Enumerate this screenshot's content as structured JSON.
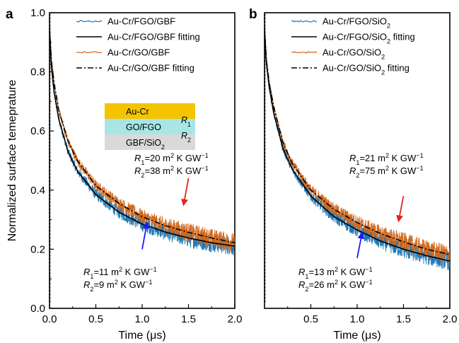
{
  "chart_data": [
    {
      "panel": "a",
      "type": "line",
      "xlabel": "Time (μs)",
      "ylabel": "Normalized surface temeprature",
      "xlim": [
        0,
        2.0
      ],
      "ylim": [
        0,
        1.0
      ],
      "xticks": [
        "0.0",
        "0.5",
        "1.0",
        "1.5",
        "2.0"
      ],
      "yticks": [
        "0.0",
        "0.2",
        "0.4",
        "0.6",
        "0.8",
        "1.0"
      ],
      "legend_position": "top-center",
      "legend": [
        {
          "text": "Au-Cr/FGO/GBF",
          "style": "noisy",
          "color": "#1f77b4"
        },
        {
          "text": "Au-Cr/FGO/GBF fitting",
          "style": "solid",
          "color": "#000000"
        },
        {
          "text": "Au-Cr/GO/GBF",
          "style": "noisy",
          "color": "#d2691e"
        },
        {
          "text": "Au-Cr/GO/GBF fitting",
          "style": "dashdot",
          "color": "#000000"
        }
      ],
      "series": [
        {
          "name": "Au-Cr/FGO/GBF",
          "color": "#1f77b4",
          "kind": "data",
          "fit_ref": "fgo"
        },
        {
          "name": "Au-Cr/FGO/GBF fitting",
          "color": "#000000",
          "kind": "fit",
          "fit_ref": "fgo",
          "x": [
            0,
            0.02,
            0.05,
            0.1,
            0.2,
            0.3,
            0.5,
            0.75,
            1.0,
            1.25,
            1.5,
            1.75,
            2.0
          ],
          "y": [
            0.95,
            0.82,
            0.73,
            0.64,
            0.53,
            0.465,
            0.385,
            0.325,
            0.285,
            0.258,
            0.238,
            0.222,
            0.21
          ]
        },
        {
          "name": "Au-Cr/GO/GBF",
          "color": "#d2691e",
          "kind": "data",
          "fit_ref": "go"
        },
        {
          "name": "Au-Cr/GO/GBF fitting",
          "color": "#000000",
          "kind": "fit",
          "fit_ref": "go",
          "x": [
            0,
            0.02,
            0.05,
            0.1,
            0.2,
            0.3,
            0.5,
            0.75,
            1.0,
            1.25,
            1.5,
            1.75,
            2.0
          ],
          "y": [
            0.95,
            0.84,
            0.76,
            0.67,
            0.565,
            0.5,
            0.415,
            0.355,
            0.31,
            0.28,
            0.257,
            0.238,
            0.222
          ]
        }
      ],
      "inset": {
        "layers": [
          {
            "text": "Au-Cr",
            "color": "#f5c400"
          },
          {
            "text": "GO/FGO",
            "color": "#a8e6e6"
          },
          {
            "text": "GBF/SiO",
            "sub": "2",
            "color": "#d9d9d9"
          }
        ],
        "r_labels": [
          {
            "text": "R",
            "sub": "1"
          },
          {
            "text": "R",
            "sub": "2"
          }
        ]
      },
      "annotations": {
        "upper": [
          {
            "sym": "R",
            "sub": "1",
            "val": "=20 m",
            "sup": "2",
            "unit": " K GW",
            "usup": "−1"
          },
          {
            "sym": "R",
            "sub": "2",
            "val": "=38 m",
            "sup": "2",
            "unit": " K GW",
            "usup": "−1"
          }
        ],
        "lower": [
          {
            "sym": "R",
            "sub": "1",
            "val": "=11 m",
            "sup": "2",
            "unit": " K GW",
            "usup": "−1"
          },
          {
            "sym": "R",
            "sub": "2",
            "val": "=9 m",
            "sup": "2",
            "unit": " K GW",
            "usup": "−1"
          }
        ],
        "arrows": [
          {
            "color": "#e8231e",
            "x0": 1.5,
            "y0": 0.44,
            "x1": 1.45,
            "y1": 0.355
          },
          {
            "color": "#1a1aff",
            "x0": 1.0,
            "y0": 0.2,
            "x1": 1.05,
            "y1": 0.285
          }
        ]
      }
    },
    {
      "panel": "b",
      "type": "line",
      "xlabel": "Time (μs)",
      "ylabel": "",
      "xlim": [
        0,
        2.0
      ],
      "ylim": [
        0,
        1.0
      ],
      "xticks": [
        "0.5",
        "1.0",
        "1.5",
        "2.0"
      ],
      "yticks": [],
      "legend_position": "top-center",
      "legend": [
        {
          "text": "Au-Cr/FGO/SiO",
          "sub": "2",
          "after": "",
          "style": "noisy",
          "color": "#1f77b4"
        },
        {
          "text": "Au-Cr/FGO/SiO",
          "sub": "2",
          "after": " fitting",
          "style": "solid",
          "color": "#000000"
        },
        {
          "text": "Au-Cr/GO/SiO",
          "sub": "2",
          "after": "",
          "style": "noisy",
          "color": "#d2691e"
        },
        {
          "text": "Au-Cr/GO/SiO",
          "sub": "2",
          "after": " fitting",
          "style": "dashdot",
          "color": "#000000"
        }
      ],
      "series": [
        {
          "name": "Au-Cr/FGO/SiO2",
          "color": "#1f77b4",
          "kind": "data",
          "fit_ref": "fgo"
        },
        {
          "name": "Au-Cr/FGO/SiO2 fitting",
          "color": "#000000",
          "kind": "fit",
          "fit_ref": "fgo",
          "x": [
            0,
            0.02,
            0.05,
            0.1,
            0.2,
            0.3,
            0.5,
            0.75,
            1.0,
            1.25,
            1.5,
            1.75,
            2.0
          ],
          "y": [
            0.95,
            0.83,
            0.75,
            0.66,
            0.54,
            0.47,
            0.38,
            0.31,
            0.265,
            0.228,
            0.2,
            0.178,
            0.16
          ]
        },
        {
          "name": "Au-Cr/GO/SiO2",
          "color": "#d2691e",
          "kind": "data",
          "fit_ref": "go"
        },
        {
          "name": "Au-Cr/GO/SiO2 fitting",
          "color": "#000000",
          "kind": "fit",
          "fit_ref": "go",
          "x": [
            0,
            0.02,
            0.05,
            0.1,
            0.2,
            0.3,
            0.5,
            0.75,
            1.0,
            1.25,
            1.5,
            1.75,
            2.0
          ],
          "y": [
            0.95,
            0.84,
            0.765,
            0.68,
            0.56,
            0.49,
            0.4,
            0.335,
            0.29,
            0.253,
            0.225,
            0.2,
            0.182
          ]
        }
      ],
      "annotations": {
        "upper": [
          {
            "sym": "R",
            "sub": "1",
            "val": "=21 m",
            "sup": "2",
            "unit": " K GW",
            "usup": "−1"
          },
          {
            "sym": "R",
            "sub": "2",
            "val": "=75 m",
            "sup": "2",
            "unit": " K GW",
            "usup": "−1"
          }
        ],
        "lower": [
          {
            "sym": "R",
            "sub": "1",
            "val": "=13 m",
            "sup": "2",
            "unit": " K GW",
            "usup": "−1"
          },
          {
            "sym": "R",
            "sub": "2",
            "val": "=26 m",
            "sup": "2",
            "unit": " K GW",
            "usup": "−1"
          }
        ],
        "arrows": [
          {
            "color": "#e8231e",
            "x0": 1.5,
            "y0": 0.38,
            "x1": 1.45,
            "y1": 0.3
          },
          {
            "color": "#1a1aff",
            "x0": 1.0,
            "y0": 0.17,
            "x1": 1.05,
            "y1": 0.25
          }
        ]
      }
    }
  ]
}
